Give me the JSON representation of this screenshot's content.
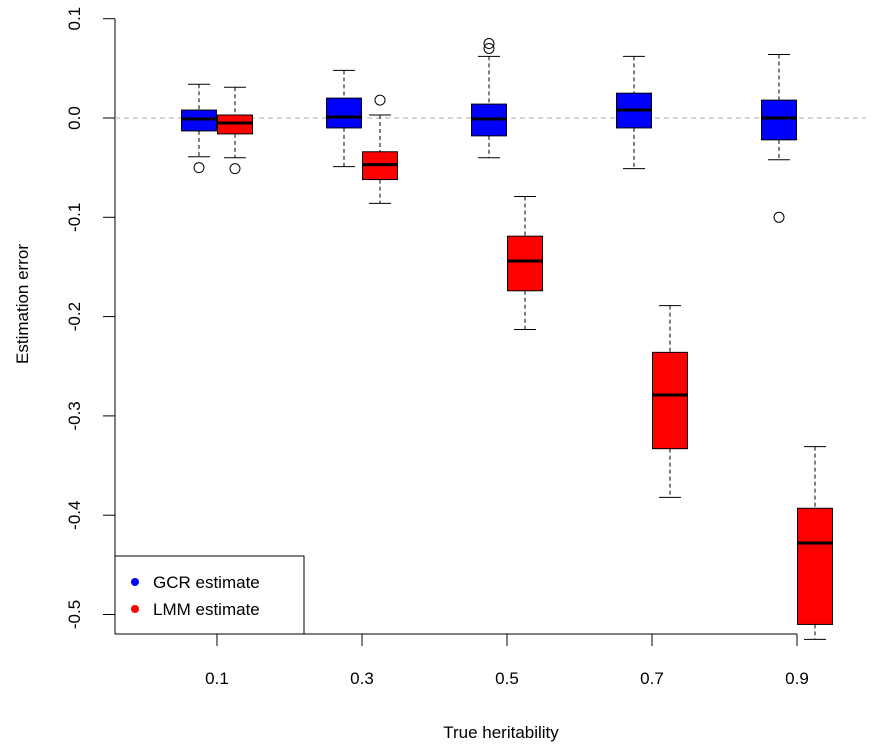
{
  "chart_data": {
    "type": "boxplot",
    "title": "",
    "xlabel": "True heritability",
    "ylabel": "Estimation error",
    "categories": [
      "0.1",
      "0.3",
      "0.5",
      "0.7",
      "0.9"
    ],
    "x_ticks": [
      "0.1",
      "0.3",
      "0.5",
      "0.7",
      "0.9"
    ],
    "y_ticks": [
      "-0.5",
      "-0.4",
      "-0.3",
      "-0.2",
      "-0.1",
      "0.0",
      "0.1"
    ],
    "y_tick_values": [
      -0.5,
      -0.4,
      -0.3,
      -0.2,
      -0.1,
      0.0,
      0.1
    ],
    "ylim": [
      -0.52,
      0.1
    ],
    "reference_line": {
      "y": 0.0,
      "style": "dashed",
      "color": "#bebebe"
    },
    "legend_position": "bottom-left",
    "series": [
      {
        "name": "GCR estimate",
        "color": "#0000ff",
        "boxes": [
          {
            "category": "0.1",
            "whisker_low": -0.039,
            "q1": -0.013,
            "median": -0.001,
            "q3": 0.008,
            "whisker_high": 0.034,
            "outliers": [
              -0.05
            ]
          },
          {
            "category": "0.3",
            "whisker_low": -0.049,
            "q1": -0.01,
            "median": 0.001,
            "q3": 0.02,
            "whisker_high": 0.048,
            "outliers": []
          },
          {
            "category": "0.5",
            "whisker_low": -0.04,
            "q1": -0.018,
            "median": -0.001,
            "q3": 0.014,
            "whisker_high": 0.062,
            "outliers": [
              0.07,
              0.075
            ]
          },
          {
            "category": "0.7",
            "whisker_low": -0.051,
            "q1": -0.01,
            "median": 0.008,
            "q3": 0.025,
            "whisker_high": 0.062,
            "outliers": []
          },
          {
            "category": "0.9",
            "whisker_low": -0.042,
            "q1": -0.022,
            "median": 0.0,
            "q3": 0.018,
            "whisker_high": 0.064,
            "outliers": [
              -0.1
            ]
          }
        ]
      },
      {
        "name": "LMM estimate",
        "color": "#ff0000",
        "boxes": [
          {
            "category": "0.1",
            "whisker_low": -0.04,
            "q1": -0.016,
            "median": -0.005,
            "q3": 0.003,
            "whisker_high": 0.031,
            "outliers": [
              -0.051
            ]
          },
          {
            "category": "0.3",
            "whisker_low": -0.086,
            "q1": -0.062,
            "median": -0.047,
            "q3": -0.034,
            "whisker_high": 0.003,
            "outliers": [
              0.018
            ]
          },
          {
            "category": "0.5",
            "whisker_low": -0.213,
            "q1": -0.174,
            "median": -0.144,
            "q3": -0.119,
            "whisker_high": -0.079,
            "outliers": []
          },
          {
            "category": "0.7",
            "whisker_low": -0.382,
            "q1": -0.333,
            "median": -0.279,
            "q3": -0.236,
            "whisker_high": -0.189,
            "outliers": []
          },
          {
            "category": "0.9",
            "whisker_low": -0.525,
            "q1": -0.51,
            "median": -0.428,
            "q3": -0.393,
            "whisker_high": -0.331,
            "outliers": []
          }
        ]
      }
    ],
    "legend": [
      {
        "label": "GCR estimate",
        "color": "#0000ff"
      },
      {
        "label": "LMM estimate",
        "color": "#ff0000"
      }
    ]
  }
}
